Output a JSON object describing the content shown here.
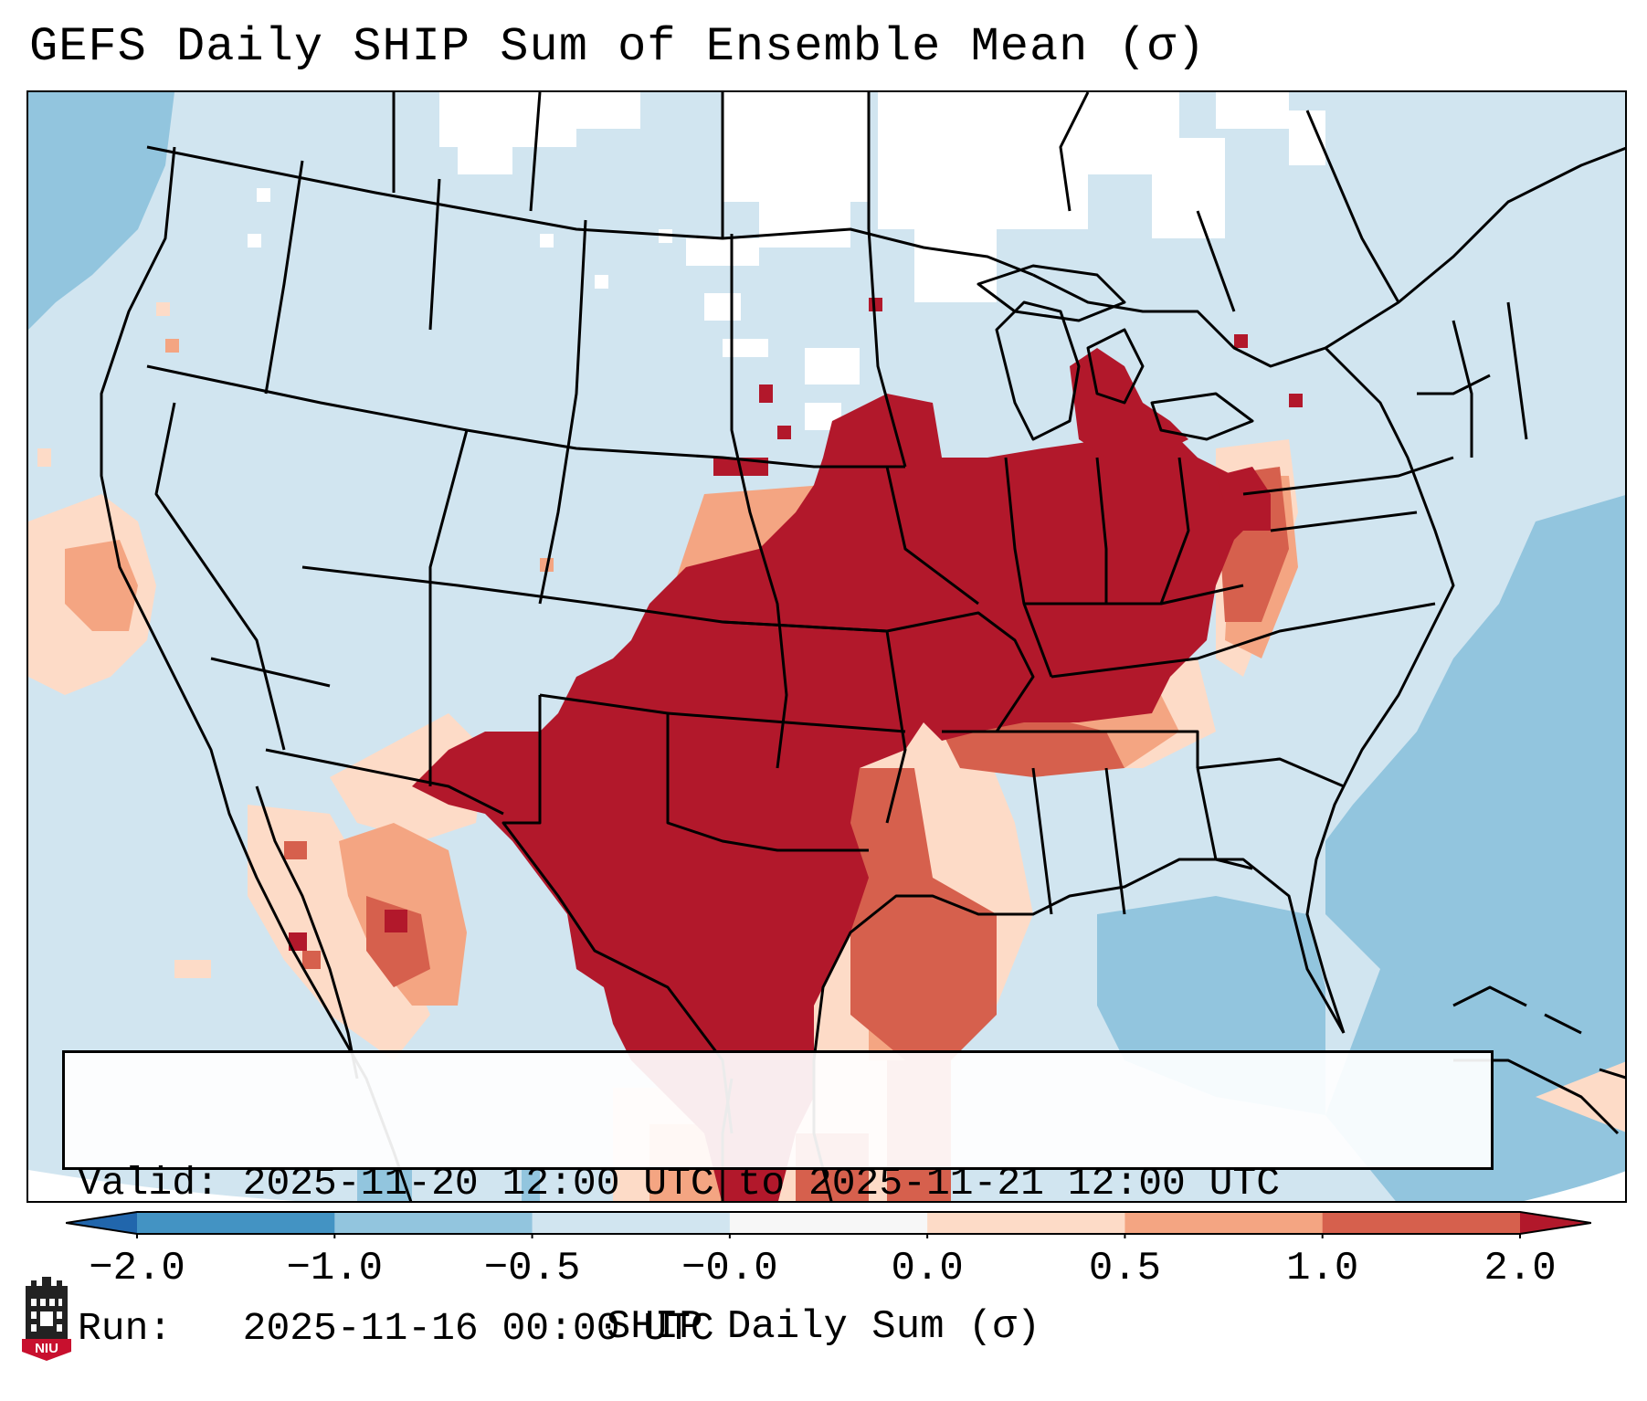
{
  "title": "GEFS Daily SHIP Sum of Ensemble Mean (σ)",
  "info": {
    "valid_label": "Valid:",
    "valid_value": "2025-11-20 12:00 UTC to 2025-11-21 12:00 UTC",
    "run_label": "Run:",
    "run_value": "2025-11-16 00:00 UTC"
  },
  "colorbar": {
    "label": "SHIP Daily Sum (σ)",
    "ticks": [
      "−2.0",
      "−1.0",
      "−0.5",
      "−0.0",
      "0.0",
      "0.5",
      "1.0",
      "2.0"
    ],
    "bins": [
      {
        "color": "#2166ac"
      },
      {
        "color": "#4393c3"
      },
      {
        "color": "#92c5de"
      },
      {
        "color": "#d1e5f0"
      },
      {
        "color": "#f7f7f7"
      },
      {
        "color": "#fddbc7"
      },
      {
        "color": "#f4a582"
      },
      {
        "color": "#d6604d"
      },
      {
        "color": "#b2182b"
      }
    ]
  },
  "map": {
    "background_color": "#d1e5f0",
    "ocean_color": "#92c5de",
    "high_color": "#b2182b",
    "mid_color": "#d6604d",
    "low_color": "#f4a582",
    "faint_color": "#fddbc7",
    "near_zero_color": "#ffffff"
  },
  "logo": {
    "text": "NIU",
    "color": "#c8102e"
  }
}
